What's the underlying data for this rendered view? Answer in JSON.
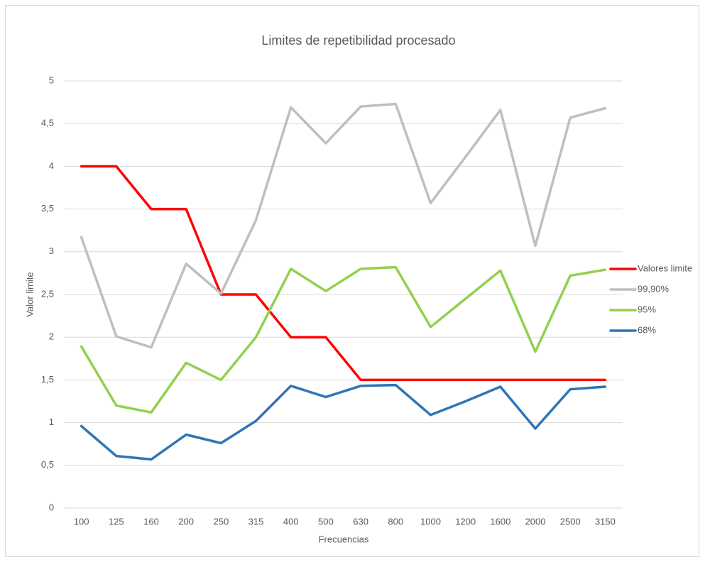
{
  "chart_data": {
    "type": "line",
    "title": "Limites de repetibilidad procesado",
    "x_label": "Frecuencias",
    "y_label": "Valor limite",
    "categories": [
      "100",
      "125",
      "160",
      "200",
      "250",
      "315",
      "400",
      "500",
      "630",
      "800",
      "1000",
      "1200",
      "1600",
      "2000",
      "2500",
      "3150"
    ],
    "series": [
      {
        "name": "Valores limite",
        "color": "#ff0000",
        "values": [
          4,
          4,
          3.5,
          3.5,
          2.5,
          2.5,
          2,
          2,
          1.5,
          1.5,
          1.5,
          1.5,
          1.5,
          1.5,
          1.5,
          1.5
        ]
      },
      {
        "name": "99,90%",
        "color": "#bfbfbf",
        "values": [
          3.17,
          2.01,
          1.88,
          2.86,
          2.51,
          3.37,
          4.69,
          4.27,
          4.7,
          4.73,
          3.57,
          4.11,
          4.66,
          3.07,
          4.57,
          4.68
        ]
      },
      {
        "name": "95%",
        "color": "#92d050",
        "values": [
          1.89,
          1.2,
          1.12,
          1.7,
          1.5,
          2.0,
          2.8,
          2.54,
          2.8,
          2.82,
          2.12,
          2.45,
          2.78,
          1.83,
          2.72,
          2.79
        ]
      },
      {
        "name": "68%",
        "color": "#2e75b6",
        "values": [
          0.96,
          0.61,
          0.57,
          0.86,
          0.76,
          1.02,
          1.43,
          1.3,
          1.43,
          1.44,
          1.09,
          1.25,
          1.42,
          0.93,
          1.39,
          1.42
        ]
      }
    ],
    "ylim": [
      0,
      5
    ],
    "yticks": [
      0,
      {
        "value": 0.5,
        "label": "0,5"
      },
      1,
      {
        "value": 1.5,
        "label": "1,5"
      },
      2,
      {
        "value": 2.5,
        "label": "2,5"
      },
      3,
      {
        "value": 3.5,
        "label": "3,5"
      },
      4,
      {
        "value": 4.5,
        "label": "4,5"
      },
      5
    ],
    "grid": true,
    "legend": "right"
  }
}
